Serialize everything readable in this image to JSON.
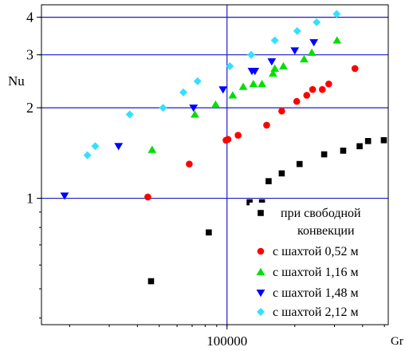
{
  "chart_data": {
    "type": "scatter",
    "title": "",
    "xlabel": "Gr",
    "ylabel": "Nu",
    "x_scale": "log",
    "y_scale": "log",
    "xlim": [
      15000,
      520000
    ],
    "ylim": [
      0.38,
      4.4
    ],
    "x_ticks": [
      {
        "value": 100000,
        "label": "100000"
      }
    ],
    "y_ticks": [
      {
        "value": 1,
        "label": "1"
      },
      {
        "value": 2,
        "label": "2"
      },
      {
        "value": 3,
        "label": "3"
      },
      {
        "value": 4,
        "label": "4"
      }
    ],
    "grid": true,
    "grid_color": "#1c1cc8",
    "legend_position": "bottom-right",
    "series": [
      {
        "name": "при свободной конвекции",
        "legend_lines": [
          "при свободной",
          "конвекции"
        ],
        "marker": "square",
        "color": "#000000",
        "x": [
          46000,
          83000,
          126000,
          143000,
          153000,
          175000,
          210000,
          270000,
          328000,
          388000,
          423000,
          497000
        ],
        "y": [
          0.53,
          0.77,
          0.97,
          0.97,
          1.14,
          1.21,
          1.3,
          1.4,
          1.44,
          1.49,
          1.55,
          1.56
        ]
      },
      {
        "name": "с шахтой 0,52 м",
        "marker": "circle",
        "color": "#ff0000",
        "x": [
          44500,
          68000,
          99000,
          101000,
          112000,
          150000,
          175000,
          204000,
          226000,
          240000,
          265000,
          283000,
          370000
        ],
        "y": [
          1.01,
          1.3,
          1.56,
          1.57,
          1.62,
          1.75,
          1.95,
          2.1,
          2.2,
          2.3,
          2.3,
          2.4,
          2.7
        ]
      },
      {
        "name": "с шахтой 1,16 м",
        "marker": "triangle-up",
        "color": "#00e000",
        "x": [
          46500,
          72000,
          89000,
          106000,
          118000,
          131000,
          143000,
          160000,
          163000,
          178000,
          220000,
          238000,
          308000
        ],
        "y": [
          1.45,
          1.9,
          2.05,
          2.2,
          2.35,
          2.4,
          2.4,
          2.6,
          2.7,
          2.75,
          2.9,
          3.05,
          3.35
        ]
      },
      {
        "name": "с шахтой 1,48 м",
        "marker": "triangle-down",
        "color": "#0000ff",
        "x": [
          19000,
          33000,
          71000,
          96000,
          129000,
          133000,
          158000,
          200000,
          243000
        ],
        "y": [
          1.02,
          1.49,
          2.0,
          2.3,
          2.65,
          2.65,
          2.85,
          3.1,
          3.3
        ]
      },
      {
        "name": "с шахтой 2,12 м",
        "marker": "diamond",
        "color": "#33e0ff",
        "x": [
          24000,
          26000,
          37000,
          52000,
          64000,
          74000,
          103000,
          128000,
          163000,
          205000,
          250000,
          307000
        ],
        "y": [
          1.39,
          1.49,
          1.9,
          2.0,
          2.25,
          2.45,
          2.75,
          3.0,
          3.35,
          3.6,
          3.85,
          4.1
        ]
      }
    ]
  }
}
